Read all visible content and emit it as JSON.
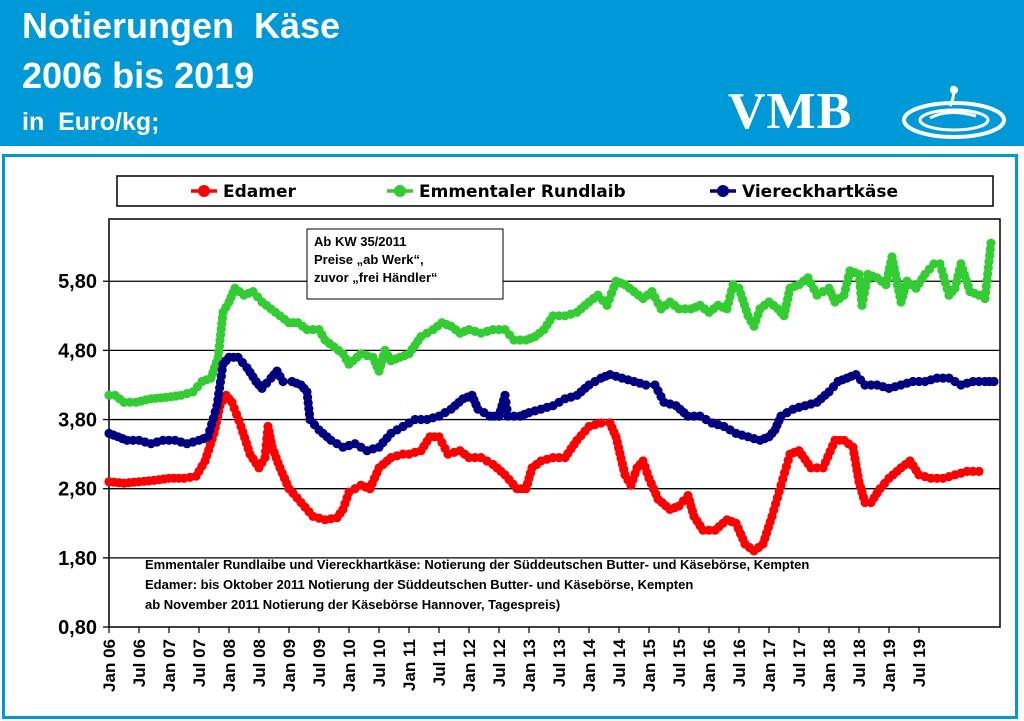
{
  "header": {
    "title_line1": "Notierungen  Käse",
    "title_line2": "2006 bis 2019",
    "unit": "in  Euro/kg;",
    "logo_text": "VMB",
    "background_color": "#0099d8"
  },
  "chart_data": {
    "type": "line",
    "title": "Notierungen Käse 2006 bis 2019",
    "ylabel": "",
    "xlabel": "",
    "ylim": [
      0.8,
      6.7
    ],
    "yticks": [
      "0,80",
      "1,80",
      "2,80",
      "3,80",
      "4,80",
      "5,80"
    ],
    "ytick_values": [
      0.8,
      1.8,
      2.8,
      3.8,
      4.8,
      5.8
    ],
    "xticks": [
      "Jan 06",
      "Jul 06",
      "Jan 07",
      "Jul 07",
      "Jan 08",
      "Jul 08",
      "Jan 09",
      "Jul 09",
      "Jan 10",
      "Jul 10",
      "Jan 11",
      "Jul 11",
      "Jan 12",
      "Jul 12",
      "Jan 13",
      "Jul 13",
      "Jan 14",
      "Jul 14",
      "Jan 15",
      "Jul 15",
      "Jan 16",
      "Jul 16",
      "Jan 17",
      "Jul 17",
      "Jan 18",
      "Jul 18",
      "Jan 19",
      "Jul 19"
    ],
    "grid": "horizontal",
    "legend": "top",
    "annotation": [
      "Ab KW 35/2011",
      "Preise „ab Werk“,",
      "zuvor „frei Händler“"
    ],
    "notes": [
      "Emmentaler Rundlaibe und Viereckhartkäse: Notierung der Süddeutschen Butter-  und Käsebörse, Kempten",
      "Edamer: bis Oktober 2011  Notierung der Süddeutschen Butter- und Käsebörse, Kempten",
      "ab November 2011  Notierung der Käsebörse Hannover, Tagespreis)"
    ],
    "series": [
      {
        "name": "Edamer",
        "color": "#ff0000",
        "points": [
          [
            2006.0,
            2.9
          ],
          [
            2006.25,
            2.88
          ],
          [
            2006.5,
            2.9
          ],
          [
            2006.75,
            2.92
          ],
          [
            2007.0,
            2.95
          ],
          [
            2007.25,
            2.95
          ],
          [
            2007.45,
            2.98
          ],
          [
            2007.6,
            3.2
          ],
          [
            2007.75,
            3.6
          ],
          [
            2007.85,
            4.0
          ],
          [
            2007.95,
            4.15
          ],
          [
            2008.05,
            4.05
          ],
          [
            2008.2,
            3.7
          ],
          [
            2008.35,
            3.3
          ],
          [
            2008.5,
            3.1
          ],
          [
            2008.6,
            3.25
          ],
          [
            2008.65,
            3.7
          ],
          [
            2008.72,
            3.4
          ],
          [
            2008.85,
            3.1
          ],
          [
            2009.0,
            2.8
          ],
          [
            2009.2,
            2.6
          ],
          [
            2009.4,
            2.4
          ],
          [
            2009.6,
            2.35
          ],
          [
            2009.8,
            2.38
          ],
          [
            2009.9,
            2.5
          ],
          [
            2010.0,
            2.75
          ],
          [
            2010.2,
            2.85
          ],
          [
            2010.35,
            2.8
          ],
          [
            2010.5,
            3.1
          ],
          [
            2010.7,
            3.25
          ],
          [
            2010.9,
            3.3
          ],
          [
            2011.0,
            3.3
          ],
          [
            2011.2,
            3.35
          ],
          [
            2011.35,
            3.55
          ],
          [
            2011.5,
            3.55
          ],
          [
            2011.65,
            3.3
          ],
          [
            2011.85,
            3.35
          ],
          [
            2012.0,
            3.25
          ],
          [
            2012.2,
            3.25
          ],
          [
            2012.4,
            3.15
          ],
          [
            2012.6,
            3.0
          ],
          [
            2012.8,
            2.8
          ],
          [
            2012.95,
            2.8
          ],
          [
            2013.05,
            3.1
          ],
          [
            2013.2,
            3.2
          ],
          [
            2013.4,
            3.25
          ],
          [
            2013.6,
            3.25
          ],
          [
            2013.8,
            3.5
          ],
          [
            2014.0,
            3.7
          ],
          [
            2014.2,
            3.75
          ],
          [
            2014.35,
            3.75
          ],
          [
            2014.45,
            3.55
          ],
          [
            2014.6,
            3.0
          ],
          [
            2014.7,
            2.85
          ],
          [
            2014.8,
            3.1
          ],
          [
            2014.9,
            3.2
          ],
          [
            2015.0,
            2.95
          ],
          [
            2015.15,
            2.65
          ],
          [
            2015.35,
            2.5
          ],
          [
            2015.5,
            2.55
          ],
          [
            2015.65,
            2.7
          ],
          [
            2015.75,
            2.4
          ],
          [
            2015.9,
            2.2
          ],
          [
            2016.1,
            2.2
          ],
          [
            2016.3,
            2.35
          ],
          [
            2016.45,
            2.3
          ],
          [
            2016.6,
            2.0
          ],
          [
            2016.75,
            1.9
          ],
          [
            2016.9,
            2.0
          ],
          [
            2017.05,
            2.4
          ],
          [
            2017.2,
            2.85
          ],
          [
            2017.35,
            3.3
          ],
          [
            2017.5,
            3.35
          ],
          [
            2017.7,
            3.1
          ],
          [
            2017.9,
            3.1
          ],
          [
            2018.1,
            3.5
          ],
          [
            2018.25,
            3.5
          ],
          [
            2018.4,
            3.4
          ],
          [
            2018.5,
            2.9
          ],
          [
            2018.6,
            2.6
          ],
          [
            2018.7,
            2.6
          ],
          [
            2018.85,
            2.8
          ],
          [
            2019.0,
            2.95
          ],
          [
            2019.2,
            3.1
          ],
          [
            2019.35,
            3.2
          ],
          [
            2019.5,
            3.0
          ],
          [
            2019.7,
            2.95
          ],
          [
            2019.9,
            2.95
          ],
          [
            2020.1,
            3.0
          ],
          [
            2020.3,
            3.05
          ],
          [
            2020.5,
            3.05
          ]
        ]
      },
      {
        "name": "Emmentaler Rundlaib",
        "color": "#33cc33",
        "points": [
          [
            2006.0,
            4.15
          ],
          [
            2006.1,
            4.15
          ],
          [
            2006.25,
            4.05
          ],
          [
            2006.45,
            4.05
          ],
          [
            2006.7,
            4.1
          ],
          [
            2006.95,
            4.12
          ],
          [
            2007.2,
            4.15
          ],
          [
            2007.4,
            4.2
          ],
          [
            2007.55,
            4.35
          ],
          [
            2007.7,
            4.4
          ],
          [
            2007.82,
            4.7
          ],
          [
            2007.9,
            5.35
          ],
          [
            2008.0,
            5.5
          ],
          [
            2008.1,
            5.7
          ],
          [
            2008.25,
            5.6
          ],
          [
            2008.4,
            5.65
          ],
          [
            2008.55,
            5.5
          ],
          [
            2008.7,
            5.4
          ],
          [
            2008.85,
            5.3
          ],
          [
            2009.0,
            5.2
          ],
          [
            2009.15,
            5.2
          ],
          [
            2009.3,
            5.1
          ],
          [
            2009.5,
            5.1
          ],
          [
            2009.6,
            4.95
          ],
          [
            2009.75,
            4.85
          ],
          [
            2009.9,
            4.75
          ],
          [
            2010.0,
            4.6
          ],
          [
            2010.2,
            4.75
          ],
          [
            2010.4,
            4.7
          ],
          [
            2010.5,
            4.5
          ],
          [
            2010.6,
            4.8
          ],
          [
            2010.7,
            4.65
          ],
          [
            2010.85,
            4.7
          ],
          [
            2011.0,
            4.75
          ],
          [
            2011.2,
            5.0
          ],
          [
            2011.4,
            5.1
          ],
          [
            2011.55,
            5.2
          ],
          [
            2011.7,
            5.15
          ],
          [
            2011.85,
            5.05
          ],
          [
            2012.0,
            5.1
          ],
          [
            2012.2,
            5.05
          ],
          [
            2012.4,
            5.1
          ],
          [
            2012.6,
            5.1
          ],
          [
            2012.75,
            4.95
          ],
          [
            2012.95,
            4.95
          ],
          [
            2013.1,
            5.0
          ],
          [
            2013.25,
            5.1
          ],
          [
            2013.4,
            5.3
          ],
          [
            2013.6,
            5.3
          ],
          [
            2013.8,
            5.35
          ],
          [
            2014.0,
            5.5
          ],
          [
            2014.15,
            5.6
          ],
          [
            2014.3,
            5.45
          ],
          [
            2014.45,
            5.8
          ],
          [
            2014.6,
            5.75
          ],
          [
            2014.75,
            5.65
          ],
          [
            2014.9,
            5.55
          ],
          [
            2015.05,
            5.65
          ],
          [
            2015.2,
            5.4
          ],
          [
            2015.35,
            5.5
          ],
          [
            2015.5,
            5.4
          ],
          [
            2015.7,
            5.4
          ],
          [
            2015.85,
            5.45
          ],
          [
            2016.0,
            5.35
          ],
          [
            2016.15,
            5.45
          ],
          [
            2016.3,
            5.4
          ],
          [
            2016.4,
            5.75
          ],
          [
            2016.5,
            5.7
          ],
          [
            2016.65,
            5.3
          ],
          [
            2016.75,
            5.15
          ],
          [
            2016.85,
            5.4
          ],
          [
            2017.0,
            5.5
          ],
          [
            2017.15,
            5.4
          ],
          [
            2017.25,
            5.3
          ],
          [
            2017.35,
            5.7
          ],
          [
            2017.5,
            5.75
          ],
          [
            2017.65,
            5.85
          ],
          [
            2017.8,
            5.6
          ],
          [
            2018.0,
            5.7
          ],
          [
            2018.1,
            5.5
          ],
          [
            2018.25,
            5.6
          ],
          [
            2018.35,
            5.95
          ],
          [
            2018.5,
            5.9
          ],
          [
            2018.55,
            5.45
          ],
          [
            2018.65,
            5.9
          ],
          [
            2018.8,
            5.85
          ],
          [
            2018.95,
            5.75
          ],
          [
            2019.05,
            6.15
          ],
          [
            2019.2,
            5.5
          ],
          [
            2019.3,
            5.8
          ],
          [
            2019.45,
            5.7
          ],
          [
            2019.6,
            5.9
          ],
          [
            2019.75,
            6.05
          ],
          [
            2019.85,
            6.05
          ],
          [
            2020.0,
            5.6
          ],
          [
            2020.1,
            5.7
          ],
          [
            2020.2,
            6.05
          ],
          [
            2020.35,
            5.65
          ],
          [
            2020.5,
            5.6
          ],
          [
            2020.6,
            5.55
          ],
          [
            2020.7,
            6.35
          ]
        ]
      },
      {
        "name": "Viereckhartkäse",
        "color": "#000080",
        "points": [
          [
            2006.0,
            3.6
          ],
          [
            2006.15,
            3.55
          ],
          [
            2006.3,
            3.5
          ],
          [
            2006.5,
            3.5
          ],
          [
            2006.7,
            3.45
          ],
          [
            2006.9,
            3.5
          ],
          [
            2007.1,
            3.5
          ],
          [
            2007.3,
            3.45
          ],
          [
            2007.5,
            3.5
          ],
          [
            2007.65,
            3.55
          ],
          [
            2007.8,
            4.0
          ],
          [
            2007.9,
            4.6
          ],
          [
            2008.0,
            4.7
          ],
          [
            2008.15,
            4.7
          ],
          [
            2008.3,
            4.55
          ],
          [
            2008.45,
            4.35
          ],
          [
            2008.55,
            4.25
          ],
          [
            2008.7,
            4.4
          ],
          [
            2008.8,
            4.5
          ],
          [
            2008.9,
            4.35
          ],
          [
            2009.05,
            4.35
          ],
          [
            2009.2,
            4.3
          ],
          [
            2009.3,
            4.2
          ],
          [
            2009.35,
            3.8
          ],
          [
            2009.5,
            3.65
          ],
          [
            2009.7,
            3.5
          ],
          [
            2009.9,
            3.4
          ],
          [
            2010.1,
            3.45
          ],
          [
            2010.3,
            3.35
          ],
          [
            2010.5,
            3.4
          ],
          [
            2010.7,
            3.6
          ],
          [
            2010.9,
            3.7
          ],
          [
            2011.1,
            3.8
          ],
          [
            2011.3,
            3.8
          ],
          [
            2011.5,
            3.85
          ],
          [
            2011.7,
            3.95
          ],
          [
            2011.9,
            4.1
          ],
          [
            2012.05,
            4.15
          ],
          [
            2012.15,
            3.95
          ],
          [
            2012.35,
            3.85
          ],
          [
            2012.5,
            3.85
          ],
          [
            2012.6,
            4.15
          ],
          [
            2012.65,
            3.85
          ],
          [
            2012.85,
            3.85
          ],
          [
            2013.0,
            3.9
          ],
          [
            2013.2,
            3.95
          ],
          [
            2013.4,
            4.0
          ],
          [
            2013.6,
            4.1
          ],
          [
            2013.8,
            4.15
          ],
          [
            2014.0,
            4.3
          ],
          [
            2014.2,
            4.4
          ],
          [
            2014.35,
            4.45
          ],
          [
            2014.55,
            4.4
          ],
          [
            2014.75,
            4.35
          ],
          [
            2014.95,
            4.3
          ],
          [
            2015.1,
            4.3
          ],
          [
            2015.25,
            4.05
          ],
          [
            2015.45,
            4.0
          ],
          [
            2015.65,
            3.85
          ],
          [
            2015.85,
            3.85
          ],
          [
            2016.05,
            3.75
          ],
          [
            2016.25,
            3.7
          ],
          [
            2016.45,
            3.6
          ],
          [
            2016.65,
            3.55
          ],
          [
            2016.85,
            3.5
          ],
          [
            2017.0,
            3.55
          ],
          [
            2017.1,
            3.65
          ],
          [
            2017.2,
            3.85
          ],
          [
            2017.4,
            3.95
          ],
          [
            2017.6,
            4.0
          ],
          [
            2017.8,
            4.05
          ],
          [
            2018.0,
            4.2
          ],
          [
            2018.15,
            4.35
          ],
          [
            2018.3,
            4.4
          ],
          [
            2018.45,
            4.45
          ],
          [
            2018.6,
            4.3
          ],
          [
            2018.8,
            4.3
          ],
          [
            2019.0,
            4.25
          ],
          [
            2019.2,
            4.3
          ],
          [
            2019.4,
            4.35
          ],
          [
            2019.6,
            4.35
          ],
          [
            2019.8,
            4.4
          ],
          [
            2020.0,
            4.4
          ],
          [
            2020.2,
            4.3
          ],
          [
            2020.4,
            4.35
          ],
          [
            2020.6,
            4.35
          ],
          [
            2020.75,
            4.35
          ]
        ]
      }
    ]
  }
}
